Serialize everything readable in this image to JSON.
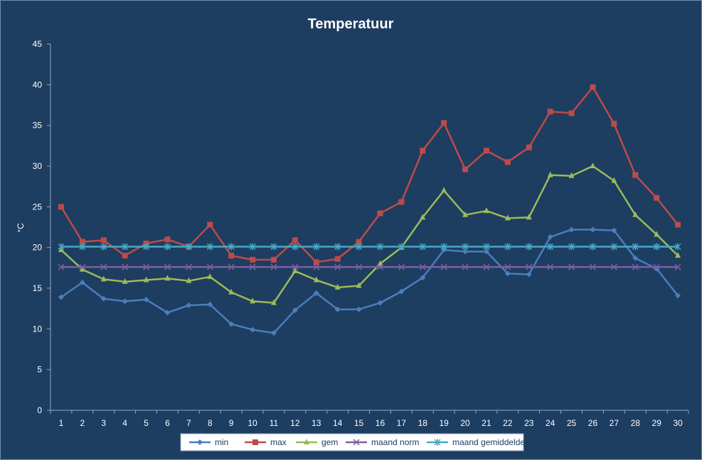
{
  "chart_data": {
    "type": "line",
    "title": "Temperatuur",
    "xlabel": "",
    "ylabel": "°C",
    "ylim": [
      0,
      45
    ],
    "yticks": [
      0,
      5,
      10,
      15,
      20,
      25,
      30,
      35,
      40,
      45
    ],
    "grid": false,
    "legend_position": "bottom",
    "categories": [
      "1",
      "2",
      "3",
      "4",
      "5",
      "6",
      "7",
      "8",
      "9",
      "10",
      "11",
      "12",
      "13",
      "14",
      "15",
      "16",
      "17",
      "18",
      "19",
      "20",
      "21",
      "22",
      "23",
      "24",
      "25",
      "26",
      "27",
      "28",
      "29",
      "30"
    ],
    "series": [
      {
        "name": "min",
        "color": "#4a7ebb",
        "marker": "diamond",
        "values": [
          13.9,
          15.7,
          13.7,
          13.4,
          13.6,
          12.0,
          12.9,
          13.0,
          10.6,
          9.9,
          9.5,
          12.3,
          14.4,
          12.4,
          12.4,
          13.2,
          14.6,
          16.3,
          19.7,
          19.5,
          19.5,
          16.8,
          16.7,
          21.3,
          22.2,
          22.2,
          22.1,
          18.7,
          17.4,
          14.1
        ]
      },
      {
        "name": "max",
        "color": "#be4b48",
        "marker": "square",
        "values": [
          25.0,
          20.7,
          20.9,
          19.0,
          20.5,
          21.0,
          20.1,
          22.8,
          19.0,
          18.5,
          18.5,
          20.9,
          18.2,
          18.6,
          20.7,
          24.2,
          25.6,
          31.9,
          35.3,
          29.6,
          31.9,
          30.5,
          32.3,
          36.7,
          36.5,
          39.7,
          35.2,
          28.9,
          26.1,
          22.8
        ]
      },
      {
        "name": "gem",
        "color": "#9bbb59",
        "marker": "triangle",
        "values": [
          19.7,
          17.3,
          16.1,
          15.8,
          16.0,
          16.2,
          15.9,
          16.4,
          14.5,
          13.4,
          13.2,
          17.1,
          16.0,
          15.1,
          15.3,
          18.0,
          20.0,
          23.7,
          27.0,
          24.0,
          24.5,
          23.6,
          23.7,
          28.9,
          28.8,
          30.0,
          28.2,
          24.0,
          21.6,
          19.0
        ]
      },
      {
        "name": "maand norm",
        "color": "#7d5fa0",
        "marker": "x",
        "values": [
          17.6,
          17.6,
          17.6,
          17.6,
          17.6,
          17.6,
          17.6,
          17.6,
          17.6,
          17.6,
          17.6,
          17.6,
          17.6,
          17.6,
          17.6,
          17.6,
          17.6,
          17.6,
          17.6,
          17.6,
          17.6,
          17.6,
          17.6,
          17.6,
          17.6,
          17.6,
          17.6,
          17.6,
          17.6,
          17.6
        ]
      },
      {
        "name": "maand gemiddelde",
        "color": "#46aac5",
        "marker": "star",
        "values": [
          20.1,
          20.1,
          20.1,
          20.1,
          20.1,
          20.1,
          20.1,
          20.1,
          20.1,
          20.1,
          20.1,
          20.1,
          20.1,
          20.1,
          20.1,
          20.1,
          20.1,
          20.1,
          20.1,
          20.1,
          20.1,
          20.1,
          20.1,
          20.1,
          20.1,
          20.1,
          20.1,
          20.1,
          20.1,
          20.1
        ]
      }
    ]
  },
  "colors": {
    "background": "#1d3d61",
    "axis": "#8ea9c5",
    "text": "#ffffff",
    "legend_background": "#ffffff"
  }
}
